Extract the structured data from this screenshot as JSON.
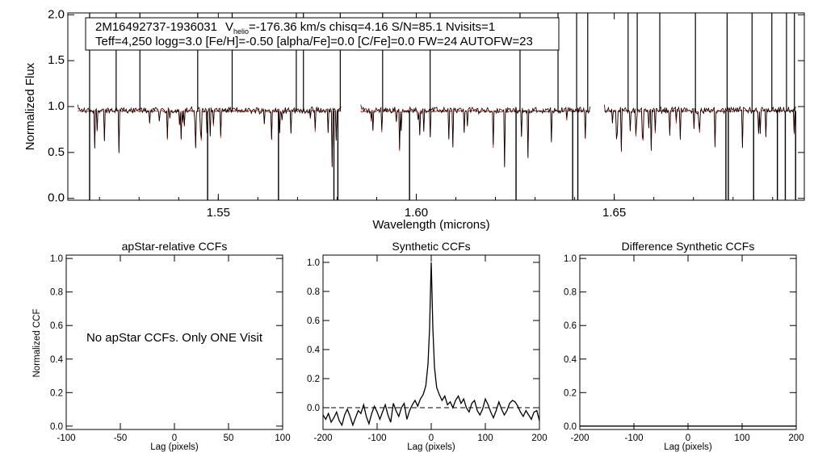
{
  "colors": {
    "observed": "#000000",
    "model": "#dd0000"
  },
  "chart_data": [
    {
      "id": "spectrum",
      "type": "line",
      "title": "",
      "header": {
        "line1_star": "2M16492737-1936031",
        "line1_v": "V",
        "line1_v_sub": "helio",
        "line1_rest": "=-176.36 km/s  chisq=4.16  S/N=85.1  Nvisits=1",
        "line2": "Teff=4,250 logg=3.0 [Fe/H]=-0.50 [alpha/Fe]=0.0 [C/Fe]=0.0 FW=24 AUTOFW=23"
      },
      "xlabel": "Wavelength (microns)",
      "ylabel": "Normalized Flux",
      "xlim": [
        1.512,
        1.698
      ],
      "ylim": [
        -0.02,
        2.02
      ],
      "xticks": [
        1.55,
        1.6,
        1.65
      ],
      "xtick_labels": [
        "1.55",
        "1.60",
        "1.65"
      ],
      "yticks": [
        0.0,
        0.5,
        1.0,
        1.5,
        2.0
      ],
      "ytick_labels": [
        "0.0",
        "0.5",
        "1.0",
        "1.5",
        "2.0"
      ],
      "chips": [
        [
          1.5145,
          1.581
        ],
        [
          1.586,
          1.644
        ],
        [
          1.6475,
          1.696
        ]
      ],
      "series": [
        {
          "name": "observed",
          "continuum": 0.95,
          "noise": 0.03
        },
        {
          "name": "model",
          "continuum": 0.95,
          "noise": 0.02
        }
      ],
      "spikes_up": [
        1.5175,
        1.5242,
        1.5302,
        1.5448,
        1.5535,
        1.5697,
        1.5715,
        1.5808,
        1.5915,
        1.6035,
        1.6262,
        1.6358,
        1.6405,
        1.6433,
        1.6535,
        1.6558,
        1.6615,
        1.6705,
        1.6785,
        1.6848,
        1.6898,
        1.6935,
        1.6955
      ],
      "spikes_down": [
        1.5175,
        1.5473,
        1.5652,
        1.5792,
        1.5802,
        1.5983,
        1.6252,
        1.6395,
        1.6408,
        1.6782,
        1.6788,
        1.6852,
        1.6912,
        1.6932,
        1.6958
      ]
    },
    {
      "id": "apstar-ccf",
      "type": "line",
      "title": "apStar-relative CCFs",
      "xlabel": "Lag (pixels)",
      "ylabel": "Normalized CCF",
      "xlim": [
        -100,
        100
      ],
      "ylim": [
        -0.02,
        1.02
      ],
      "xticks": [
        -100,
        -50,
        0,
        50,
        100
      ],
      "xtick_labels": [
        "-100",
        "-50",
        "0",
        "50",
        "100"
      ],
      "yticks": [
        0.0,
        0.2,
        0.4,
        0.6,
        0.8,
        1.0
      ],
      "ytick_labels": [
        "0.0",
        "0.2",
        "0.4",
        "0.6",
        "0.8",
        "1.0"
      ],
      "message": "No apStar CCFs.  Only ONE Visit",
      "series": []
    },
    {
      "id": "synthetic-ccf",
      "type": "line",
      "title": "Synthetic CCFs",
      "xlabel": "Lag (pixels)",
      "ylabel": "",
      "xlim": [
        -200,
        200
      ],
      "ylim": [
        -0.15,
        1.05
      ],
      "xticks": [
        -200,
        -100,
        0,
        100,
        200
      ],
      "xtick_labels": [
        "-200",
        "-100",
        "0",
        "100",
        "200"
      ],
      "yticks": [
        0.0,
        0.2,
        0.4,
        0.6,
        0.8,
        1.0
      ],
      "ytick_labels": [
        "0.0",
        "0.2",
        "0.4",
        "0.6",
        "0.8",
        "1.0"
      ],
      "zero_line": 0.0,
      "series": [
        {
          "name": "CCF",
          "x": [
            -200,
            -195,
            -190,
            -185,
            -180,
            -175,
            -170,
            -165,
            -160,
            -155,
            -150,
            -145,
            -140,
            -135,
            -130,
            -125,
            -120,
            -115,
            -110,
            -105,
            -100,
            -95,
            -90,
            -85,
            -80,
            -75,
            -70,
            -65,
            -60,
            -55,
            -50,
            -45,
            -40,
            -35,
            -30,
            -25,
            -20,
            -15,
            -10,
            -6,
            -3,
            -1,
            0,
            1,
            3,
            6,
            10,
            15,
            20,
            25,
            30,
            35,
            40,
            45,
            50,
            55,
            60,
            65,
            70,
            75,
            80,
            85,
            90,
            95,
            100,
            105,
            110,
            115,
            120,
            125,
            130,
            135,
            140,
            145,
            150,
            155,
            160,
            165,
            170,
            175,
            180,
            185,
            190,
            195,
            200
          ],
          "y": [
            -0.05,
            -0.08,
            -0.04,
            -0.1,
            -0.07,
            -0.03,
            -0.09,
            -0.12,
            -0.05,
            -0.01,
            -0.06,
            -0.12,
            -0.07,
            -0.02,
            -0.04,
            0.02,
            -0.06,
            -0.11,
            -0.04,
            0.01,
            -0.03,
            -0.08,
            -0.03,
            0.02,
            -0.05,
            -0.1,
            0.03,
            -0.02,
            -0.06,
            0.0,
            0.03,
            -0.08,
            -0.02,
            0.02,
            0.05,
            0.01,
            0.06,
            0.09,
            0.15,
            0.3,
            0.55,
            0.85,
            1.0,
            0.85,
            0.55,
            0.28,
            0.14,
            0.09,
            0.05,
            0.08,
            0.02,
            0.04,
            0.0,
            0.05,
            0.08,
            0.03,
            0.06,
            0.0,
            -0.03,
            0.03,
            0.05,
            -0.02,
            -0.05,
            -0.01,
            0.06,
            0.02,
            -0.03,
            -0.07,
            -0.02,
            0.04,
            -0.01,
            -0.05,
            -0.02,
            0.03,
            0.05,
            0.04,
            0.01,
            -0.03,
            -0.06,
            -0.02,
            -0.05,
            -0.08,
            -0.03,
            -0.02,
            -0.09
          ]
        }
      ]
    },
    {
      "id": "difference-ccf",
      "type": "line",
      "title": "Difference Synthetic CCFs",
      "xlabel": "Lag (pixels)",
      "ylabel": "",
      "xlim": [
        -200,
        200
      ],
      "ylim": [
        -0.02,
        1.02
      ],
      "xticks": [
        -200,
        -100,
        0,
        100,
        200
      ],
      "xtick_labels": [
        "-200",
        "-100",
        "0",
        "100",
        "200"
      ],
      "yticks": [
        0.0,
        0.2,
        0.4,
        0.6,
        0.8,
        1.0
      ],
      "ytick_labels": [
        "0.0",
        "0.2",
        "0.4",
        "0.6",
        "0.8",
        "1.0"
      ],
      "series": [
        {
          "name": "difference",
          "x": [
            -200,
            200
          ],
          "y": [
            0.0,
            0.0
          ]
        }
      ]
    }
  ]
}
